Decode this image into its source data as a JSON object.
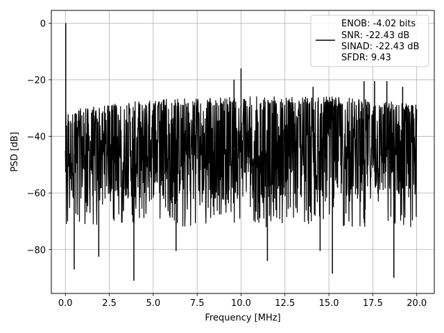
{
  "chart_data": {
    "type": "line",
    "title": "",
    "xlabel": "Frequency [MHz]",
    "ylabel": "PSD [dB]",
    "xlim": [
      -0.8,
      21.0
    ],
    "ylim": [
      -95.5,
      4.5
    ],
    "grid": true,
    "x_ticks": [
      0.0,
      2.5,
      5.0,
      7.5,
      10.0,
      12.5,
      15.0,
      17.5,
      20.0
    ],
    "x_tick_labels": [
      "0.0",
      "2.5",
      "5.0",
      "7.5",
      "10.0",
      "12.5",
      "15.0",
      "17.5",
      "20.0"
    ],
    "y_ticks": [
      0,
      -20,
      -40,
      -60,
      -80
    ],
    "y_tick_labels": [
      "0",
      "−20",
      "−40",
      "−60",
      "−80"
    ],
    "series": [
      {
        "color": "#000000",
        "x_range": [
          0.0,
          20.0
        ],
        "noise_band_upper": [
          [
            0.0,
            -31
          ],
          [
            2.0,
            -29
          ],
          [
            5.0,
            -27
          ],
          [
            10.0,
            -26
          ],
          [
            15.0,
            -26
          ],
          [
            20.0,
            -28
          ]
        ],
        "noise_band_lower": [
          [
            0.0,
            -62
          ],
          [
            20.0,
            -62
          ]
        ],
        "peaks": [
          {
            "x": 0.02,
            "y": 0
          },
          {
            "x": 10.0,
            "y": -16
          },
          {
            "x": 9.6,
            "y": -20
          },
          {
            "x": 17.0,
            "y": -20.5
          },
          {
            "x": 17.6,
            "y": -20.5
          },
          {
            "x": 18.3,
            "y": -20.5
          },
          {
            "x": 14.1,
            "y": -22.5
          },
          {
            "x": 19.2,
            "y": -22.5
          }
        ],
        "dips": [
          {
            "x": 3.9,
            "y": -91
          },
          {
            "x": 18.7,
            "y": -90
          },
          {
            "x": 15.2,
            "y": -88.5
          },
          {
            "x": 0.5,
            "y": -87
          },
          {
            "x": 11.5,
            "y": -84
          },
          {
            "x": 1.9,
            "y": -82.5
          },
          {
            "x": 14.5,
            "y": -80.5
          },
          {
            "x": 6.3,
            "y": -80.5
          }
        ]
      }
    ],
    "legend": {
      "position": "top-right",
      "lines": [
        "ENOB: -4.02 bits",
        "SNR: -22.43 dB",
        "SINAD: -22.43 dB",
        "SFDR: 9.43"
      ]
    }
  }
}
